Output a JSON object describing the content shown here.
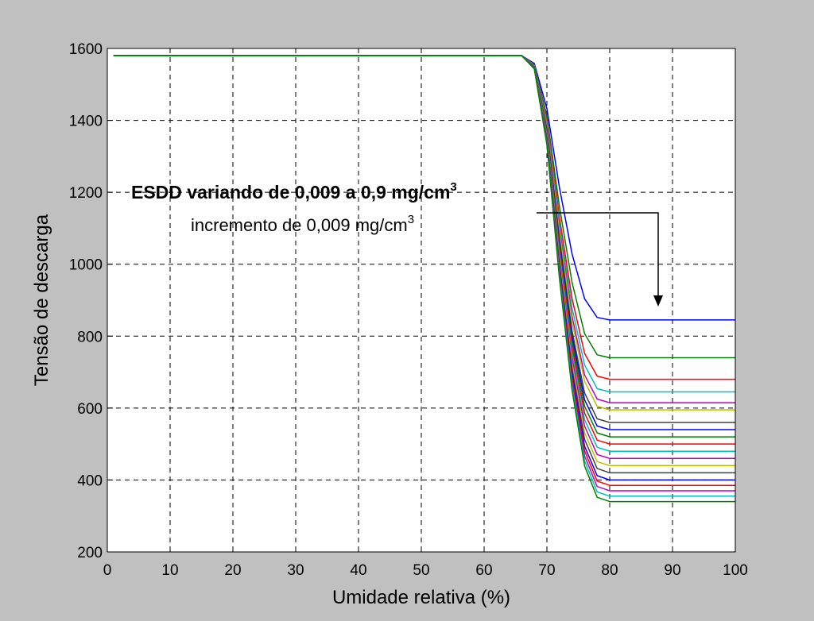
{
  "chart_data": {
    "type": "line",
    "xlabel": "Umidade relativa (%)",
    "ylabel": "Tensão de descarga",
    "annotations": [
      {
        "text": "ESDD variando de 0,009 a 0,9 mg/cm",
        "sup": "3"
      },
      {
        "text": "incremento de 0,009 mg/cm",
        "sup": "3"
      }
    ],
    "xlim": [
      0,
      100
    ],
    "ylim": [
      200,
      1600
    ],
    "xticks": [
      0,
      10,
      20,
      30,
      40,
      50,
      60,
      70,
      80,
      90,
      100
    ],
    "yticks": [
      200,
      400,
      600,
      800,
      1000,
      1200,
      1400,
      1600
    ],
    "grid": true,
    "x": [
      1,
      66,
      68,
      70,
      72,
      74,
      76,
      78,
      80,
      100
    ],
    "series": [
      {
        "color": "#0000ff",
        "values": [
          1580,
          1580,
          1558,
          1433,
          1213,
          1029,
          904,
          852,
          845,
          845
        ]
      },
      {
        "color": "#008000",
        "values": [
          1580,
          1580,
          1555,
          1412,
          1160,
          950,
          807,
          748,
          740,
          740
        ]
      },
      {
        "color": "#ff0000",
        "values": [
          1580,
          1580,
          1553,
          1400,
          1130,
          905,
          752,
          689,
          680,
          680
        ]
      },
      {
        "color": "#00bfbf",
        "values": [
          1580,
          1580,
          1552,
          1393,
          1113,
          879,
          720,
          654,
          645,
          645
        ]
      },
      {
        "color": "#bf00bf",
        "values": [
          1580,
          1580,
          1551,
          1387,
          1098,
          856,
          692,
          625,
          615,
          615
        ]
      },
      {
        "color": "#bfbf00",
        "values": [
          1580,
          1580,
          1550,
          1383,
          1088,
          841,
          674,
          605,
          595,
          595
        ]
      },
      {
        "color": "#404040",
        "values": [
          1580,
          1580,
          1549,
          1376,
          1070,
          815,
          642,
          570,
          560,
          560
        ]
      },
      {
        "color": "#0000ff",
        "values": [
          1580,
          1580,
          1549,
          1372,
          1060,
          800,
          623,
          550,
          540,
          540
        ]
      },
      {
        "color": "#008000",
        "values": [
          1580,
          1580,
          1548,
          1368,
          1050,
          785,
          605,
          531,
          520,
          520
        ]
      },
      {
        "color": "#ff0000",
        "values": [
          1580,
          1580,
          1548,
          1364,
          1040,
          770,
          586,
          511,
          500,
          500
        ]
      },
      {
        "color": "#00bfbf",
        "values": [
          1580,
          1580,
          1547,
          1360,
          1030,
          755,
          568,
          491,
          480,
          480
        ]
      },
      {
        "color": "#bf00bf",
        "values": [
          1580,
          1580,
          1546,
          1356,
          1020,
          740,
          550,
          471,
          460,
          460
        ]
      },
      {
        "color": "#bfbf00",
        "values": [
          1580,
          1580,
          1546,
          1352,
          1010,
          725,
          531,
          451,
          440,
          440
        ]
      },
      {
        "color": "#404040",
        "values": [
          1580,
          1580,
          1545,
          1348,
          1000,
          710,
          513,
          432,
          420,
          420
        ]
      },
      {
        "color": "#0000ff",
        "values": [
          1580,
          1580,
          1545,
          1344,
          990,
          695,
          494,
          412,
          400,
          400
        ]
      },
      {
        "color": "#ff0000",
        "values": [
          1580,
          1580,
          1544,
          1341,
          983,
          684,
          481,
          397,
          385,
          385
        ]
      },
      {
        "color": "#bf00bf",
        "values": [
          1580,
          1580,
          1544,
          1338,
          975,
          673,
          467,
          382,
          370,
          370
        ]
      },
      {
        "color": "#00bfbf",
        "values": [
          1580,
          1580,
          1543,
          1335,
          968,
          661,
          453,
          367,
          355,
          355
        ]
      },
      {
        "color": "#008000",
        "values": [
          1580,
          1580,
          1543,
          1332,
          960,
          650,
          439,
          352,
          340,
          340
        ]
      }
    ]
  }
}
